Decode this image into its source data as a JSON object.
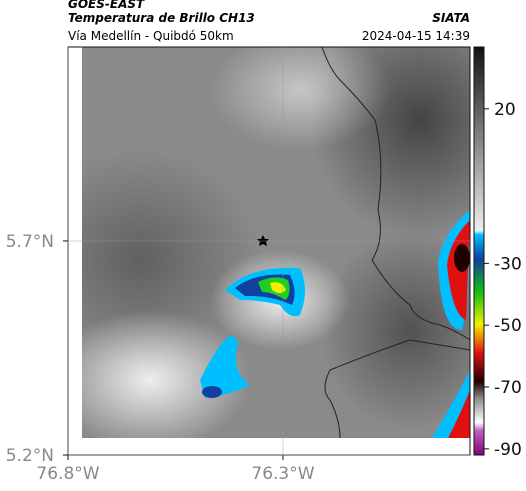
{
  "header": {
    "title": "GOES-EAST",
    "subtitle": "Temperatura de Brillo CH13",
    "source": "SIATA",
    "route": "Vía Medellín - Quibdó 50km",
    "timestamp": "2024-04-15 14:39"
  },
  "map": {
    "xlim": [
      -76.8,
      -75.865
    ],
    "ylim": [
      5.2,
      6.153
    ],
    "xticks": [
      {
        "value": -76.8,
        "label": "76.8°W"
      },
      {
        "value": -76.3,
        "label": "76.3°W"
      }
    ],
    "yticks": [
      {
        "value": 5.7,
        "label": "5.7°N"
      },
      {
        "value": 5.2,
        "label": "5.2°N"
      }
    ],
    "grid": true
  },
  "colorbar": {
    "clim": [
      -92,
      40
    ],
    "ticks": [
      20,
      -30,
      -50,
      -70,
      -90
    ]
  }
}
